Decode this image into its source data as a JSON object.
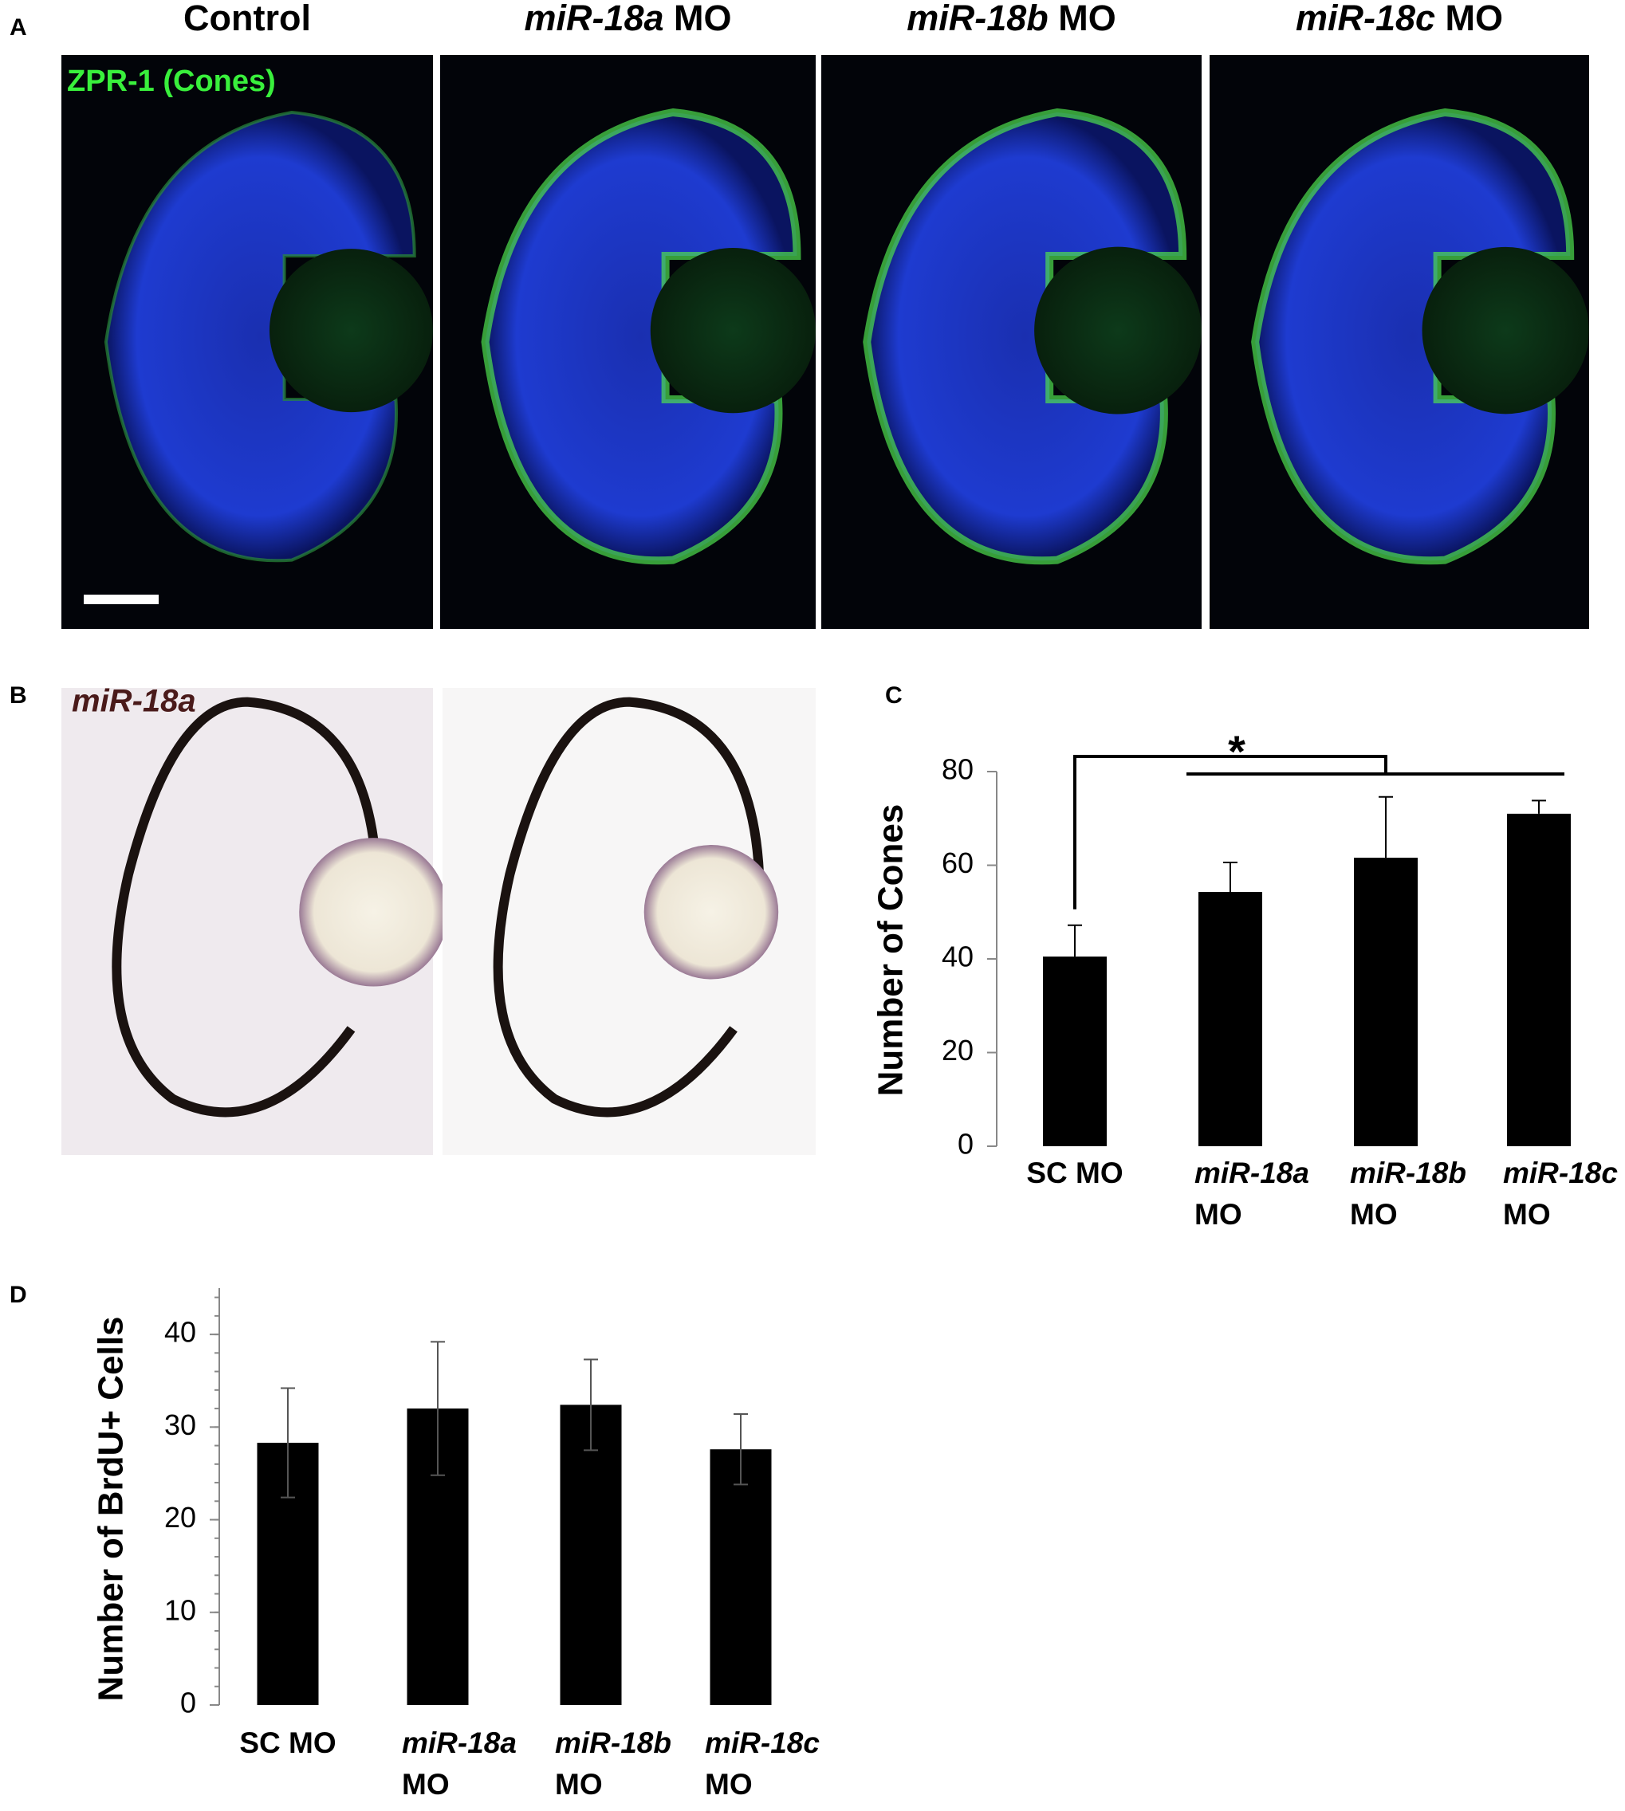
{
  "panel_a": {
    "label": "A",
    "stain": "ZPR-1 (Cones)",
    "titles": [
      "Control",
      "miR-18a MO",
      "miR-18b MO",
      "miR-18c MO"
    ],
    "italic_first_word": [
      false,
      true,
      true,
      true
    ]
  },
  "panel_b": {
    "label": "B",
    "probe": "miR-18a"
  },
  "chart_data": [
    {
      "type": "bar",
      "panel_label": "C",
      "y_label": "Number of Cones",
      "categories": [
        "SC MO",
        "miR-18a MO",
        "miR-18b MO",
        "miR-18c MO"
      ],
      "italic_first_word": [
        false,
        true,
        true,
        true
      ],
      "values": [
        40.5,
        54.3,
        61.6,
        71
      ],
      "errors": [
        6.7,
        6.3,
        13,
        2.8
      ],
      "error_direction": "up",
      "color": "#000000",
      "ylim": [
        0,
        80
      ],
      "yticks": [
        0,
        20,
        40,
        60,
        80
      ],
      "annotation": "*"
    },
    {
      "type": "bar",
      "panel_label": "D",
      "y_label": "Number of BrdU+ Cells",
      "categories": [
        "SC MO",
        "miR-18a MO",
        "miR-18b MO",
        "miR-18c MO"
      ],
      "italic_first_word": [
        false,
        true,
        true,
        true
      ],
      "values": [
        28.3,
        32,
        32.4,
        27.6
      ],
      "errors": [
        5.9,
        7.2,
        4.9,
        3.8
      ],
      "error_direction": "both",
      "color": "#000000",
      "ylim": [
        0,
        45
      ],
      "yticks": [
        0,
        10,
        20,
        30,
        40
      ]
    }
  ]
}
